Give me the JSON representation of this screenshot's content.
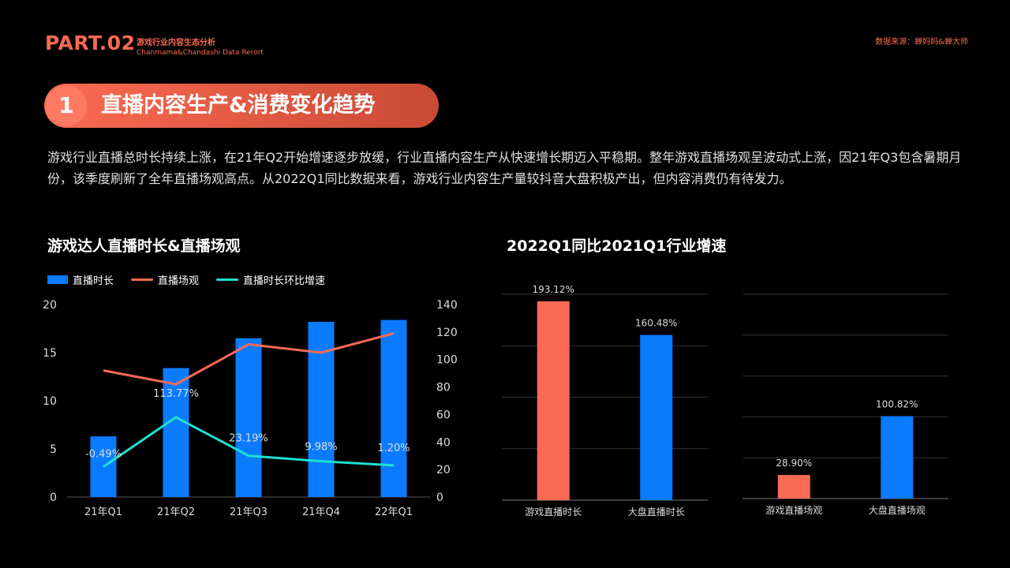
{
  "header": {
    "part": "PART.02",
    "subtitle_cn": "游戏行业内容生态分析",
    "subtitle_en": "Chanmama&Chandashi Data Rerort",
    "source": "数据来源：蝉妈妈&蝉大师"
  },
  "section": {
    "number": "1",
    "title": "直播内容生产&消费变化趋势"
  },
  "paragraph": "游戏行业直播总时长持续上涨，在21年Q2开始增速逐步放缓，行业直播内容生产从快速增长期迈入平稳期。整年游戏直播场观呈波动式上涨，因21年Q3包含暑期月份，该季度刷新了全年直播场观高点。从2022Q1同比数据来看，游戏行业内容生产量较抖音大盘积极产出，但内容消费仍有待发力。",
  "colors": {
    "blue": "#0a7bff",
    "red": "#fa6a55",
    "cyan": "#1de0d2",
    "grid": "#3a3a3a"
  },
  "chart_data": [
    {
      "type": "bar",
      "title": "游戏达人直播时长&直播场观",
      "categories": [
        "21年Q1",
        "21年Q2",
        "21年Q3",
        "21年Q4",
        "22年Q1"
      ],
      "legend": [
        "直播时长",
        "直播场观",
        "直播时长环比增速"
      ],
      "series": [
        {
          "name": "直播时长",
          "type": "bar",
          "axis": "left",
          "values": [
            6.3,
            13.4,
            16.5,
            18.2,
            18.4
          ]
        },
        {
          "name": "直播场观",
          "type": "line",
          "axis": "right",
          "values": [
            92,
            82,
            111,
            105,
            119
          ]
        },
        {
          "name": "直播时长环比增速",
          "type": "line",
          "axis": "right",
          "values": [
            22,
            58,
            30,
            26,
            23
          ],
          "labels": [
            "-0.49%",
            "113.77%",
            "23.19%",
            "9.98%",
            "1.20%"
          ]
        }
      ],
      "ylim_left": [
        0,
        20
      ],
      "yticks_left": [
        "0",
        "5",
        "10",
        "15",
        "20"
      ],
      "ylim_right": [
        0,
        140
      ],
      "yticks_right": [
        "0",
        "20",
        "40",
        "60",
        "80",
        "100",
        "120",
        "140"
      ]
    },
    {
      "type": "bar",
      "title": "2022Q1同比2021Q1行业增速",
      "categories": [
        "游戏直播时长",
        "大盘直播时长"
      ],
      "values": [
        193.12,
        160.48
      ],
      "labels": [
        "193.12%",
        "160.48%"
      ],
      "colors": [
        "#fa6a55",
        "#0a7bff"
      ],
      "ylim": [
        0,
        200
      ]
    },
    {
      "type": "bar",
      "title": "",
      "categories": [
        "游戏直播场观",
        "大盘直播场观"
      ],
      "values": [
        28.9,
        100.82
      ],
      "labels": [
        "28.90%",
        "100.82%"
      ],
      "colors": [
        "#fa6a55",
        "#0a7bff"
      ],
      "ylim": [
        0,
        250
      ]
    }
  ]
}
